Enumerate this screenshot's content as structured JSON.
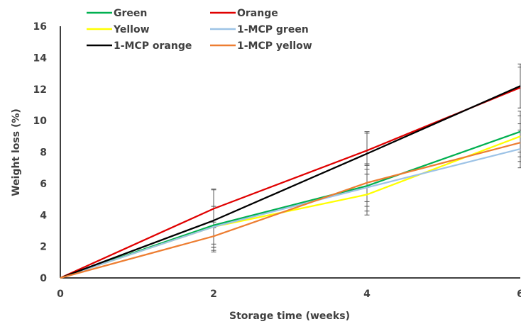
{
  "chart_data": {
    "type": "line",
    "xlabel": "Storage time (weeks)",
    "ylabel": "Weight loss (%)",
    "xlim": [
      0,
      6
    ],
    "ylim": [
      0,
      16
    ],
    "x_ticks": [
      "0",
      "2",
      "4",
      "6"
    ],
    "y_ticks": [
      "0",
      "2",
      "4",
      "6",
      "8",
      "10",
      "12",
      "14",
      "16"
    ],
    "x": [
      0,
      2,
      4,
      6
    ],
    "grid": false,
    "legend": "top",
    "series": [
      {
        "name": "Green",
        "color": "#00B050",
        "values": [
          0,
          3.35,
          5.85,
          9.3
        ],
        "error": [
          0,
          1.2,
          1.3,
          1.3
        ]
      },
      {
        "name": "Orange",
        "color": "#E00000",
        "values": [
          0,
          4.4,
          8.1,
          12.1
        ],
        "error": [
          0,
          1.2,
          1.2,
          1.3
        ]
      },
      {
        "name": "Yellow",
        "color": "#FFFF00",
        "values": [
          0,
          3.25,
          5.3,
          9.0
        ],
        "error": [
          0,
          1.3,
          1.3,
          1.3
        ]
      },
      {
        "name": "1-MCP green",
        "color": "#9DC3E6",
        "values": [
          0,
          3.25,
          5.75,
          8.2
        ],
        "error": [
          0,
          1.3,
          1.5,
          1.2
        ]
      },
      {
        "name": "1-MCP orange",
        "color": "#000000",
        "values": [
          0,
          3.65,
          7.9,
          12.2
        ],
        "error": [
          0,
          2.0,
          1.3,
          1.4
        ]
      },
      {
        "name": "1-MCP yellow",
        "color": "#ED7D31",
        "values": [
          0,
          2.65,
          6.05,
          8.6
        ],
        "error": [
          0,
          0.9,
          1.2,
          1.2
        ]
      }
    ]
  }
}
